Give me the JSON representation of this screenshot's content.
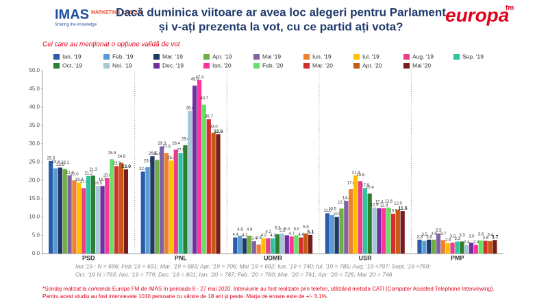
{
  "header": {
    "title_lines": [
      "Dacă duminica viitoare ar avea loc alegeri pentru Parlament",
      "și v-ați prezenta la vot, cu ce partid ați vota?"
    ],
    "left_logo": "IMAS",
    "left_logo_tag": "MARKETING & POLLS",
    "left_logo_slogan": "Sharing the knowledge",
    "right_logo": "europa",
    "right_logo_tag": "fm"
  },
  "chart_data": {
    "type": "bar",
    "subtitle": "Cei care au menționat o opțiune validă de vot",
    "categories": [
      "PSD",
      "PNL",
      "UDMR",
      "USR",
      "PMP"
    ],
    "ylim": [
      0,
      50
    ],
    "yticks": [
      {
        "value": 0,
        "label": "0.0"
      },
      {
        "value": 5,
        "label": "5.0"
      },
      {
        "value": 10,
        "label": "10.0"
      },
      {
        "value": 15,
        "label": "15.0"
      },
      {
        "value": 20,
        "label": "20.0"
      },
      {
        "value": 25,
        "label": "25.0"
      },
      {
        "value": 30,
        "label": "30.0"
      },
      {
        "value": 35,
        "label": "35.0"
      },
      {
        "value": 40,
        "label": "40.0"
      },
      {
        "value": 45,
        "label": "45.0"
      },
      {
        "value": 50,
        "label": "50.0"
      }
    ],
    "grid": false,
    "series": [
      {
        "name": "Ian. '19",
        "color": "#2a5caa",
        "values": [
          25.3,
          22.4,
          4.4,
          11.0,
          3.8
        ],
        "value_labels": [
          "25.3",
          "22.4",
          "4.4",
          "11.0",
          "3.8"
        ]
      },
      {
        "name": "Feb. '19",
        "color": "#5b9bd5",
        "values": [
          23.3,
          23.6,
          4.9,
          10.5,
          3.5
        ],
        "value_labels": [
          "23.3",
          "23.6",
          "4.9",
          "10.5",
          "3.5"
        ]
      },
      {
        "name": "Mar. '19",
        "color": "#1f3864",
        "values": [
          23.5,
          26.6,
          4.2,
          10.0,
          3.8
        ],
        "value_labels": [
          "23.5",
          "26.6",
          "4.2",
          "10.0",
          "3.8"
        ]
      },
      {
        "name": "Apr. '19",
        "color": "#70ad47",
        "values": [
          23.1,
          25.6,
          4.9,
          12.3,
          3.8
        ],
        "value_labels": [
          "23.1",
          "25.6",
          "4.9",
          "12.3",
          "3.8"
        ]
      },
      {
        "name": "Mai '19",
        "color": "#8064a2",
        "values": [
          21.4,
          29.3,
          3.4,
          14.4,
          5.5
        ],
        "value_labels": [
          "21.4",
          "29.3",
          "3.4",
          "14.4",
          "5.5"
        ]
      },
      {
        "name": "Iun. '19",
        "color": "#f07f2f",
        "values": [
          20.0,
          27.5,
          2.5,
          17.6,
          3.7
        ],
        "value_labels": [
          "20.0",
          "27.5",
          "2.5",
          "17.6",
          "3.7"
        ]
      },
      {
        "name": "Iul. '19",
        "color": "#ffc000",
        "values": [
          19.4,
          25.4,
          4.2,
          21.4,
          2.9
        ],
        "value_labels": [
          "19.4",
          "25.4",
          "4.2",
          "21.4",
          "2.9"
        ]
      },
      {
        "name": "Aug. '19",
        "color": "#e83e8c",
        "values": [
          17.9,
          28.4,
          4.2,
          19.8,
          3.0
        ],
        "value_labels": [
          "17.9",
          "28.4",
          "4.2",
          "19.8",
          "3.0"
        ]
      },
      {
        "name": "Sep. '19",
        "color": "#2ec4a0",
        "values": [
          21.2,
          27.5,
          4.2,
          17.9,
          3.3
        ],
        "value_labels": [
          "21.2",
          "27.5",
          "4.2",
          "17.9",
          "3.3"
        ]
      },
      {
        "name": "Oct. '19",
        "color": "#2e7d32",
        "values": [
          21.3,
          29.6,
          5.3,
          16.4,
          3.3
        ],
        "value_labels": [
          "21.3",
          "29.6",
          "5.3",
          "16.4",
          "3.3"
        ]
      },
      {
        "name": "Noi. '19",
        "color": "#a6c8d6",
        "values": [
          18.5,
          39.0,
          5.5,
          12.6,
          2.4
        ],
        "value_labels": [
          "18.5",
          "39.0",
          "5.5",
          "12.6",
          "2.4"
        ]
      },
      {
        "name": "Dec. '19",
        "color": "#7030a0",
        "values": [
          18.5,
          45.9,
          5.0,
          12.4,
          3.0
        ],
        "value_labels": [
          "18.5",
          "45.9",
          "5.0",
          "12.4",
          "3.0"
        ]
      },
      {
        "name": "Ian. '20",
        "color": "#ff3399",
        "values": [
          20.6,
          47.4,
          4.7,
          12.4,
          2.4
        ],
        "value_labels": [
          "20.6",
          "47.4",
          "4.7",
          "12.4",
          "2.4"
        ]
      },
      {
        "name": "Feb. '20",
        "color": "#66e066",
        "values": [
          25.8,
          40.7,
          5.0,
          12.6,
          3.6
        ],
        "value_labels": [
          "25.8",
          "40.7",
          "5.0",
          "12.6",
          "3.6"
        ]
      },
      {
        "name": "Mar. '20",
        "color": "#d62d2d",
        "values": [
          23.9,
          36.7,
          4.4,
          10.9,
          3.5
        ],
        "value_labels": [
          "23.9",
          "36.7",
          "4.4",
          "10.9",
          "3.5"
        ]
      },
      {
        "name": "Apr. '20",
        "color": "#c55a11",
        "values": [
          24.8,
          33.0,
          5.5,
          12.0,
          3.4
        ],
        "value_labels": [
          "24.8",
          "33.0",
          "5.5",
          "12.0",
          "3.4"
        ]
      },
      {
        "name": "Mai '20",
        "color": "#7b1c1c",
        "values": [
          23.0,
          32.6,
          5.1,
          11.6,
          3.7
        ],
        "value_labels": [
          "23.0",
          "32.6",
          "5.1",
          "11.6",
          "3.7"
        ]
      }
    ]
  },
  "footer": {
    "sample_lines": [
      "Ian.'19 : N = 696; Feb.'19 = 691; Mar. '19 = 683; Apr. '19 = 706; Mai '19 = 682; Iun. '19 = 740; Iul. '19 = 785; Aug. '19 =797; Sept. '19 =769;",
      "Oct. '19 N =763; Noi. '19 = 779; Dec. '19 = 801; Ian. '20 = 787; Feb. '20 = 760; Mar. '20 = 761; Apr. '20 = 725; Mai '20 = 746"
    ],
    "notes": [
      "*Sondaj realizat la comanda Europa FM de IMAS în perioada  8 - 27 mai 2020. Interviurile au fost realizate prin telefon, utilizând metoda CATI (Computer Assisted Telephone Interviewing).",
      "Pentru acest studiu au fost intervievate 1010 persoane cu vârste de 18 ani și peste. Marja de eroare este de +/- 3.1%."
    ]
  }
}
